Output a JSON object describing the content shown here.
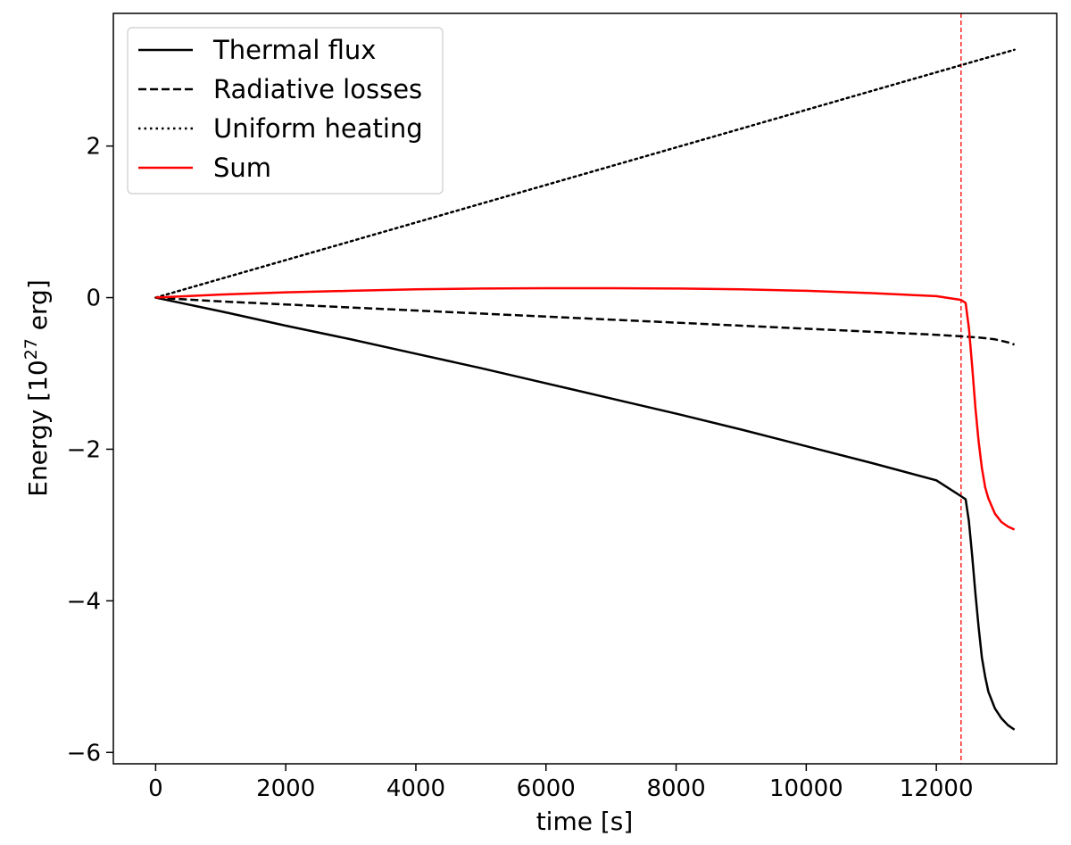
{
  "chart_data": {
    "type": "line",
    "xlabel": "time [s]",
    "ylabel_main": "Energy [10",
    "ylabel_sup": "27",
    "ylabel_tail": " erg]",
    "xlim": [
      -650,
      13850
    ],
    "ylim": [
      -6.15,
      3.75
    ],
    "xticks": [
      0,
      2000,
      4000,
      6000,
      8000,
      10000,
      12000
    ],
    "yticks": [
      -6,
      -4,
      -2,
      0,
      2
    ],
    "ytick_labels": [
      "−6",
      "−4",
      "−2",
      "0",
      "2"
    ],
    "legend_position": "top-left",
    "vline": {
      "x": 12380,
      "color": "#ff0000",
      "style": "dashed"
    },
    "series": [
      {
        "name": "Thermal flux",
        "color": "#000000",
        "style": "solid",
        "x": [
          0,
          1000,
          2000,
          3000,
          4000,
          5000,
          6000,
          7000,
          8000,
          9000,
          10000,
          11000,
          12000,
          12380,
          12450,
          12500,
          12550,
          12600,
          12650,
          12700,
          12750,
          12800,
          12900,
          13000,
          13100,
          13200
        ],
        "y": [
          0,
          -0.18,
          -0.37,
          -0.55,
          -0.74,
          -0.93,
          -1.13,
          -1.33,
          -1.53,
          -1.74,
          -1.96,
          -2.18,
          -2.41,
          -2.62,
          -2.66,
          -2.95,
          -3.4,
          -3.9,
          -4.35,
          -4.75,
          -5.0,
          -5.2,
          -5.42,
          -5.55,
          -5.64,
          -5.7
        ]
      },
      {
        "name": "Radiative losses",
        "color": "#000000",
        "style": "dashed",
        "x": [
          0,
          1000,
          2000,
          3000,
          4000,
          5000,
          6000,
          7000,
          8000,
          9000,
          10000,
          11000,
          12000,
          12380,
          12700,
          12900,
          13100,
          13200
        ],
        "y": [
          0,
          -0.05,
          -0.09,
          -0.13,
          -0.17,
          -0.21,
          -0.25,
          -0.29,
          -0.33,
          -0.37,
          -0.41,
          -0.45,
          -0.49,
          -0.51,
          -0.53,
          -0.55,
          -0.59,
          -0.62
        ]
      },
      {
        "name": "Uniform heating",
        "color": "#000000",
        "style": "dotted",
        "x": [
          0,
          13200
        ],
        "y": [
          0,
          3.27
        ]
      },
      {
        "name": "Sum",
        "color": "#ff0000",
        "style": "solid",
        "x": [
          0,
          1000,
          2000,
          3000,
          4000,
          5000,
          6000,
          7000,
          8000,
          9000,
          10000,
          11000,
          12000,
          12380,
          12450,
          12500,
          12550,
          12600,
          12650,
          12700,
          12750,
          12800,
          12900,
          13000,
          13100,
          13200
        ],
        "y": [
          0,
          0.04,
          0.07,
          0.09,
          0.11,
          0.12,
          0.125,
          0.125,
          0.12,
          0.11,
          0.09,
          0.06,
          0.02,
          -0.03,
          -0.07,
          -0.4,
          -0.9,
          -1.45,
          -1.9,
          -2.25,
          -2.5,
          -2.65,
          -2.85,
          -2.96,
          -3.02,
          -3.06
        ]
      }
    ]
  }
}
